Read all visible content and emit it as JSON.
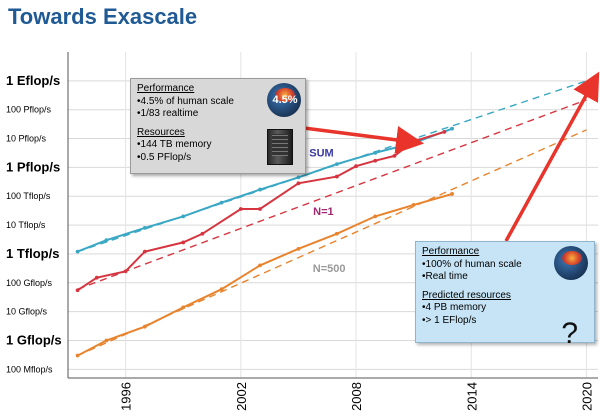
{
  "title": "Towards Exascale",
  "chart_data": {
    "type": "line",
    "title": "Towards Exascale",
    "xlabel": "",
    "ylabel": "",
    "y_scale": "log",
    "x_ticks": [
      "1996",
      "2002",
      "2008",
      "2014",
      "2020"
    ],
    "y_ticks": [
      {
        "label": "1 Eflop/s",
        "value": 1e+18,
        "major": true
      },
      {
        "label": "100 Pflop/s",
        "value": 1e+17,
        "major": false
      },
      {
        "label": "10 Pflop/s",
        "value": 1e+16,
        "major": false
      },
      {
        "label": "1 Pflop/s",
        "value": 1000000000000000.0,
        "major": true
      },
      {
        "label": "100 Tflop/s",
        "value": 100000000000000.0,
        "major": false
      },
      {
        "label": "10 Tflop/s",
        "value": 10000000000000.0,
        "major": false
      },
      {
        "label": "1 Tflop/s",
        "value": 1000000000000.0,
        "major": true
      },
      {
        "label": "100 Gflop/s",
        "value": 100000000000.0,
        "major": false
      },
      {
        "label": "10 Gflop/s",
        "value": 10000000000.0,
        "major": false
      },
      {
        "label": "1 Gflop/s",
        "value": 1000000000.0,
        "major": true
      },
      {
        "label": "100 Mflop/s",
        "value": 100000000.0,
        "major": false
      }
    ],
    "xlim": [
      1993,
      2020.6
    ],
    "ylim": [
      50000000.0,
      1e+19
    ],
    "grid": true,
    "series": [
      {
        "name": "SUM",
        "color": "#3aa8c4",
        "label_color": "#3a3aa0",
        "label_at": [
          2006.2,
          2400000000000000.0
        ],
        "x": [
          1993.5,
          1995,
          1997,
          1999,
          2001,
          2003,
          2005,
          2007,
          2009,
          2011,
          2013
        ],
        "y": [
          1200000000000.0,
          3000000000000.0,
          8000000000000.0,
          20000000000000.0,
          60000000000000.0,
          170000000000000.0,
          450000000000000.0,
          1300000000000000.0,
          3200000000000000.0,
          7000000000000000.0,
          2.2e+16
        ],
        "trend": {
          "x": [
            1993.5,
            2020
          ],
          "y": [
            1200000000000.0,
            1e+18
          ]
        }
      },
      {
        "name": "N=1",
        "color": "#d63540",
        "label_color": "#a0286e",
        "label_at": [
          2006.3,
          22000000000000.0
        ],
        "x": [
          1993.5,
          1994.5,
          1996,
          1997,
          1999,
          2000,
          2002,
          2003,
          2005,
          2007,
          2008,
          2009,
          2010,
          2011,
          2012.6
        ],
        "y": [
          55000000000.0,
          150000000000.0,
          250000000000.0,
          1200000000000.0,
          2500000000000.0,
          5000000000000.0,
          36000000000000.0,
          36000000000000.0,
          280000000000000.0,
          480000000000000.0,
          1100000000000000.0,
          1700000000000000.0,
          2500000000000000.0,
          8000000000000000.0,
          1.7e+16
        ],
        "trend": {
          "x": [
            1993.5,
            2020
          ],
          "y": [
            60000000000.0,
            2.2e+17
          ]
        }
      },
      {
        "name": "N=500",
        "color": "#e8842e",
        "label_color": "#9a9a9a",
        "label_at": [
          2006.6,
          240000000000.0
        ],
        "x": [
          1993.5,
          1995,
          1997,
          1999,
          2001,
          2003,
          2005,
          2007,
          2009,
          2011,
          2013
        ],
        "y": [
          300000000.0,
          1000000000.0,
          3000000000.0,
          14000000000.0,
          60000000000.0,
          400000000000.0,
          1500000000000.0,
          5000000000000.0,
          20000000000000.0,
          50000000000000.0,
          120000000000000.0
        ],
        "trend": {
          "x": [
            1993.5,
            2020
          ],
          "y": [
            300000000.0,
            2e+16
          ]
        }
      }
    ],
    "annotations": [
      {
        "sections": [
          {
            "heading": "Performance",
            "items": [
              "4.5% of human scale",
              "1/83 realtime"
            ]
          },
          {
            "heading": "Resources",
            "items": [
              "144 TB memory",
              "0.5 PFlop/s"
            ]
          }
        ],
        "icon": "brain-icon",
        "icon_label": "4.5%",
        "arrow_to": [
          2011,
          7500000000000000.0
        ],
        "arrow_color": "#e8342b"
      },
      {
        "sections": [
          {
            "heading": "Performance",
            "items": [
              "100% of human scale",
              "Real time"
            ]
          },
          {
            "heading": "Predicted resources",
            "items": [
              "4 PB memory",
              "> 1 EFlop/s"
            ]
          }
        ],
        "icon": "brain-icon",
        "mark": "?",
        "arrow_to": [
          2020.4,
          1e+18
        ],
        "arrow_color": "#e8342b"
      }
    ]
  }
}
